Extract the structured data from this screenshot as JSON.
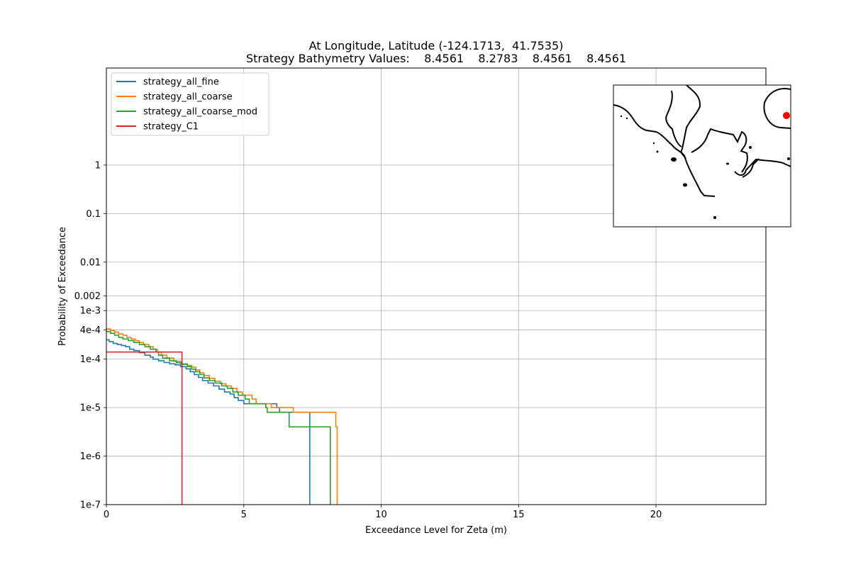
{
  "chart_data": {
    "type": "line",
    "title_line1": "At Longitude, Latitude (-124.1713,  41.7535)",
    "title_line2": "Strategy Bathymetry Values:    8.4561    8.2783    8.4561    8.4561",
    "xlabel": "Exceedance Level for Zeta (m)",
    "ylabel": "Probability of Exceedance",
    "xlim": [
      0,
      24
    ],
    "ylim": [
      1e-07,
      100
    ],
    "yscale": "log",
    "grid": true,
    "legend_position": "upper-left",
    "x_ticks": [
      {
        "value": 0,
        "label": "0"
      },
      {
        "value": 5,
        "label": "5"
      },
      {
        "value": 10,
        "label": "10"
      },
      {
        "value": 15,
        "label": "15"
      },
      {
        "value": 20,
        "label": "20"
      }
    ],
    "y_ticks": [
      {
        "value": 1e-07,
        "label": "1e-7"
      },
      {
        "value": 1e-06,
        "label": "1e-6"
      },
      {
        "value": 1e-05,
        "label": "1e-5"
      },
      {
        "value": 0.0001,
        "label": "1e-4"
      },
      {
        "value": 0.0004,
        "label": "4e-4"
      },
      {
        "value": 0.001,
        "label": "1e-3"
      },
      {
        "value": 0.002,
        "label": "0.002"
      },
      {
        "value": 0.01,
        "label": "0.01"
      },
      {
        "value": 0.1,
        "label": "0.1"
      },
      {
        "value": 1,
        "label": "1"
      }
    ],
    "series": [
      {
        "name": "strategy_all_fine",
        "color": "#1f77b4",
        "points": [
          [
            0,
            0.00025
          ],
          [
            0.1,
            0.00023
          ],
          [
            0.25,
            0.00021
          ],
          [
            0.4,
            0.0002
          ],
          [
            0.55,
            0.00019
          ],
          [
            0.7,
            0.00018
          ],
          [
            0.85,
            0.00016
          ],
          [
            1.0,
            0.00015
          ],
          [
            1.2,
            0.000135
          ],
          [
            1.4,
            0.00012
          ],
          [
            1.6,
            0.00011
          ],
          [
            1.7,
            0.0001
          ],
          [
            1.9,
            9.2e-05
          ],
          [
            2.1,
            8.5e-05
          ],
          [
            2.3,
            8e-05
          ],
          [
            2.5,
            7.6e-05
          ],
          [
            2.7,
            7e-05
          ],
          [
            2.9,
            6.3e-05
          ],
          [
            3.05,
            5.5e-05
          ],
          [
            3.2,
            4.8e-05
          ],
          [
            3.35,
            4.2e-05
          ],
          [
            3.5,
            3.6e-05
          ],
          [
            3.7,
            3.2e-05
          ],
          [
            3.9,
            2.8e-05
          ],
          [
            4.1,
            2.4e-05
          ],
          [
            4.3,
            2.1e-05
          ],
          [
            4.5,
            1.9e-05
          ],
          [
            4.65,
            1.6e-05
          ],
          [
            4.8,
            1.4e-05
          ],
          [
            5.0,
            1.2e-05
          ],
          [
            6.2,
            1e-05
          ],
          [
            6.3,
            8e-06
          ],
          [
            7.4,
            1e-07
          ]
        ]
      },
      {
        "name": "strategy_all_coarse",
        "color": "#ff7f0e",
        "points": [
          [
            0,
            0.00042
          ],
          [
            0.15,
            0.00039
          ],
          [
            0.3,
            0.00036
          ],
          [
            0.45,
            0.00033
          ],
          [
            0.6,
            0.00031
          ],
          [
            0.75,
            0.00028
          ],
          [
            0.9,
            0.00026
          ],
          [
            1.05,
            0.00024
          ],
          [
            1.2,
            0.00022
          ],
          [
            1.35,
            0.0002
          ],
          [
            1.55,
            0.00018
          ],
          [
            1.7,
            0.00016
          ],
          [
            1.85,
            0.00014
          ],
          [
            2.0,
            0.00012
          ],
          [
            2.2,
            0.000105
          ],
          [
            2.45,
            9e-05
          ],
          [
            2.7,
            8e-05
          ],
          [
            2.95,
            7.4e-05
          ],
          [
            3.1,
            6.8e-05
          ],
          [
            3.25,
            6e-05
          ],
          [
            3.4,
            5.2e-05
          ],
          [
            3.55,
            4.6e-05
          ],
          [
            3.75,
            4e-05
          ],
          [
            3.95,
            3.5e-05
          ],
          [
            4.15,
            3.1e-05
          ],
          [
            4.35,
            2.8e-05
          ],
          [
            4.55,
            2.5e-05
          ],
          [
            4.75,
            2.1e-05
          ],
          [
            4.95,
            1.8e-05
          ],
          [
            5.3,
            1.5e-05
          ],
          [
            5.45,
            1.2e-05
          ],
          [
            6.0,
            1e-05
          ],
          [
            6.8,
            8e-06
          ],
          [
            8.35,
            4e-06
          ],
          [
            8.4,
            1e-07
          ]
        ]
      },
      {
        "name": "strategy_all_coarse_mod",
        "color": "#2ca02c",
        "points": [
          [
            0,
            0.00037
          ],
          [
            0.15,
            0.00034
          ],
          [
            0.3,
            0.00031
          ],
          [
            0.45,
            0.00028
          ],
          [
            0.6,
            0.00026
          ],
          [
            0.8,
            0.00024
          ],
          [
            1.0,
            0.00022
          ],
          [
            1.2,
            0.0002
          ],
          [
            1.4,
            0.00018
          ],
          [
            1.6,
            0.00016
          ],
          [
            1.8,
            0.00014
          ],
          [
            1.9,
            0.00012
          ],
          [
            2.05,
            0.000105
          ],
          [
            2.3,
            9.2e-05
          ],
          [
            2.55,
            8.4e-05
          ],
          [
            2.75,
            7.8e-05
          ],
          [
            2.95,
            7e-05
          ],
          [
            3.1,
            6.2e-05
          ],
          [
            3.25,
            5.5e-05
          ],
          [
            3.4,
            4.8e-05
          ],
          [
            3.55,
            4.1e-05
          ],
          [
            3.75,
            3.6e-05
          ],
          [
            3.95,
            3.2e-05
          ],
          [
            4.2,
            2.8e-05
          ],
          [
            4.4,
            2.5e-05
          ],
          [
            4.6,
            2.1e-05
          ],
          [
            4.8,
            1.8e-05
          ],
          [
            5.05,
            1.5e-05
          ],
          [
            5.2,
            1.2e-05
          ],
          [
            5.8,
            1e-05
          ],
          [
            5.85,
            8e-06
          ],
          [
            6.65,
            4e-06
          ],
          [
            8.15,
            1e-07
          ]
        ]
      },
      {
        "name": "strategy_C1",
        "color": "#d62728",
        "points": [
          [
            0,
            0.00014
          ],
          [
            2.75,
            1e-07
          ]
        ]
      }
    ]
  },
  "inset_map": {
    "description_marker_color": "#ff0000"
  }
}
